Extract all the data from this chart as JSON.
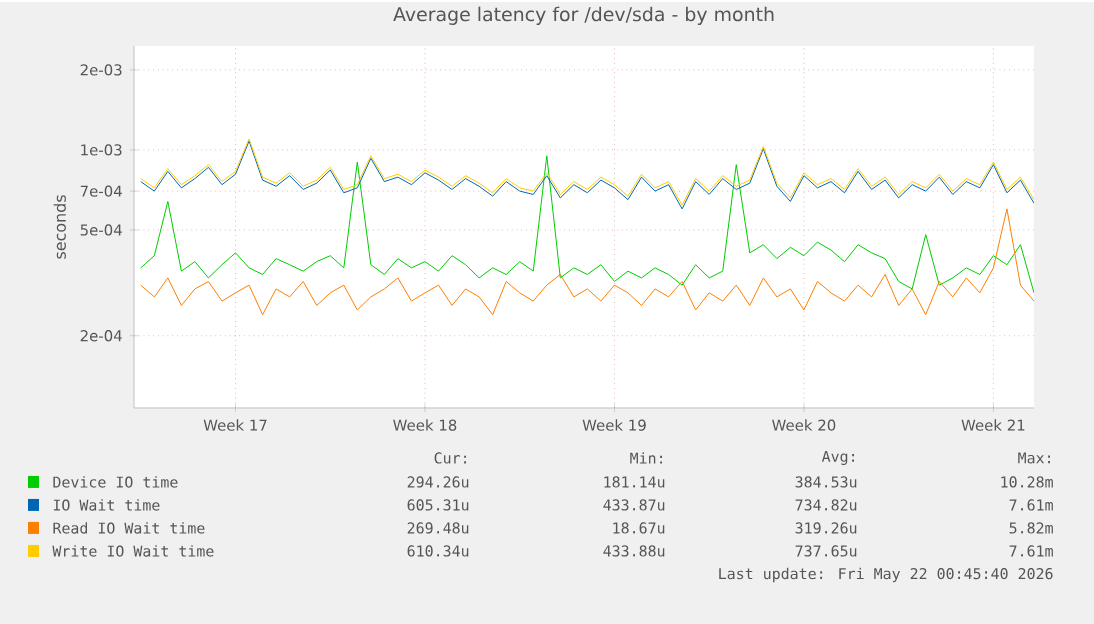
{
  "chart_data": {
    "type": "line",
    "title": "Average latency for /dev/sda - by month",
    "ylabel": "seconds",
    "log": "y",
    "grid": true,
    "legend": "bottom",
    "xlim": [
      "2026-04-19T06:00",
      "2026-05-22T12:00"
    ],
    "xticks": [
      {
        "value": "2026-04-23",
        "label": "Week 17"
      },
      {
        "value": "2026-04-30",
        "label": "Week 18"
      },
      {
        "value": "2026-05-07",
        "label": "Week 19"
      },
      {
        "value": "2026-05-14",
        "label": "Week 20"
      },
      {
        "value": "2026-05-21",
        "label": "Week 21"
      }
    ],
    "ylim": [
      0.000107,
      0.00246
    ],
    "yticks": [
      {
        "value": 0.0002,
        "label": "2e-04"
      },
      {
        "value": 0.0005,
        "label": "5e-04"
      },
      {
        "value": 0.0007,
        "label": "7e-04"
      },
      {
        "value": 0.001,
        "label": "1e-03"
      },
      {
        "value": 0.002,
        "label": "2e-03"
      }
    ],
    "x": [
      "2026-04-19T12:00",
      "2026-04-20T00:00",
      "2026-04-20T12:00",
      "2026-04-21T00:00",
      "2026-04-21T12:00",
      "2026-04-22T00:00",
      "2026-04-22T12:00",
      "2026-04-23T00:00",
      "2026-04-23T12:00",
      "2026-04-24T00:00",
      "2026-04-24T12:00",
      "2026-04-25T00:00",
      "2026-04-25T12:00",
      "2026-04-26T00:00",
      "2026-04-26T12:00",
      "2026-04-27T00:00",
      "2026-04-27T12:00",
      "2026-04-28T00:00",
      "2026-04-28T12:00",
      "2026-04-29T00:00",
      "2026-04-29T12:00",
      "2026-04-30T00:00",
      "2026-04-30T12:00",
      "2026-05-01T00:00",
      "2026-05-01T12:00",
      "2026-05-02T00:00",
      "2026-05-02T12:00",
      "2026-05-03T00:00",
      "2026-05-03T12:00",
      "2026-05-04T00:00",
      "2026-05-04T12:00",
      "2026-05-05T00:00",
      "2026-05-05T12:00",
      "2026-05-06T00:00",
      "2026-05-06T12:00",
      "2026-05-07T00:00",
      "2026-05-07T12:00",
      "2026-05-08T00:00",
      "2026-05-08T12:00",
      "2026-05-09T00:00",
      "2026-05-09T12:00",
      "2026-05-10T00:00",
      "2026-05-10T12:00",
      "2026-05-11T00:00",
      "2026-05-11T12:00",
      "2026-05-12T00:00",
      "2026-05-12T12:00",
      "2026-05-13T00:00",
      "2026-05-13T12:00",
      "2026-05-14T00:00",
      "2026-05-14T12:00",
      "2026-05-15T00:00",
      "2026-05-15T12:00",
      "2026-05-16T00:00",
      "2026-05-16T12:00",
      "2026-05-17T00:00",
      "2026-05-17T12:00",
      "2026-05-18T00:00",
      "2026-05-18T12:00",
      "2026-05-19T00:00",
      "2026-05-19T12:00",
      "2026-05-20T00:00",
      "2026-05-20T12:00",
      "2026-05-21T00:00",
      "2026-05-21T12:00",
      "2026-05-22T00:00",
      "2026-05-22T12:00"
    ],
    "series": [
      {
        "name": "Device IO time",
        "color": "#00cc00",
        "values": [
          0.00036,
          0.0004,
          0.00064,
          0.00035,
          0.00038,
          0.00033,
          0.00037,
          0.00041,
          0.00036,
          0.00034,
          0.00039,
          0.00037,
          0.00035,
          0.00038,
          0.0004,
          0.00036,
          0.0009,
          0.00037,
          0.00034,
          0.00039,
          0.00036,
          0.00038,
          0.00035,
          0.0004,
          0.00037,
          0.00033,
          0.00036,
          0.00034,
          0.00038,
          0.00035,
          0.00095,
          0.00033,
          0.00036,
          0.00034,
          0.00037,
          0.00032,
          0.00035,
          0.00033,
          0.00036,
          0.00034,
          0.00031,
          0.00037,
          0.00033,
          0.00035,
          0.00088,
          0.00041,
          0.00044,
          0.00039,
          0.00043,
          0.0004,
          0.00045,
          0.00042,
          0.00038,
          0.00044,
          0.00041,
          0.00039,
          0.00032,
          0.0003,
          0.00048,
          0.00031,
          0.00033,
          0.00036,
          0.00034,
          0.0004,
          0.00037,
          0.00044,
          0.00029
        ]
      },
      {
        "name": "IO Wait time",
        "color": "#0066b3",
        "values": [
          0.00076,
          0.0007,
          0.00083,
          0.00072,
          0.00078,
          0.00086,
          0.00074,
          0.00081,
          0.00108,
          0.00077,
          0.00073,
          0.0008,
          0.00071,
          0.00075,
          0.00084,
          0.00069,
          0.00072,
          0.00093,
          0.00076,
          0.00079,
          0.00074,
          0.00082,
          0.00077,
          0.00071,
          0.00078,
          0.00073,
          0.00067,
          0.00076,
          0.0007,
          0.00068,
          0.0008,
          0.00066,
          0.00074,
          0.00069,
          0.00077,
          0.00072,
          0.00065,
          0.00079,
          0.0007,
          0.00074,
          0.0006,
          0.00076,
          0.00068,
          0.00078,
          0.00071,
          0.00075,
          0.00101,
          0.00073,
          0.00064,
          0.0008,
          0.00072,
          0.00076,
          0.00069,
          0.00083,
          0.00071,
          0.00077,
          0.00066,
          0.00074,
          0.0007,
          0.00079,
          0.00068,
          0.00076,
          0.00072,
          0.00088,
          0.00069,
          0.00077,
          0.00063
        ]
      },
      {
        "name": "Read IO Wait time",
        "color": "#ff8000",
        "values": [
          0.00031,
          0.00028,
          0.00033,
          0.00026,
          0.0003,
          0.00032,
          0.00027,
          0.00029,
          0.00031,
          0.00024,
          0.0003,
          0.00028,
          0.00032,
          0.00026,
          0.00029,
          0.00031,
          0.00025,
          0.00028,
          0.0003,
          0.00033,
          0.00027,
          0.00029,
          0.00031,
          0.00026,
          0.0003,
          0.00028,
          0.00024,
          0.00032,
          0.00029,
          0.00027,
          0.00031,
          0.00034,
          0.00028,
          0.0003,
          0.00027,
          0.00031,
          0.00029,
          0.00026,
          0.0003,
          0.00028,
          0.00032,
          0.00025,
          0.00029,
          0.00027,
          0.00031,
          0.00026,
          0.00033,
          0.00028,
          0.0003,
          0.00025,
          0.00032,
          0.00029,
          0.00027,
          0.00031,
          0.00028,
          0.00034,
          0.00026,
          0.0003,
          0.00024,
          0.00032,
          0.00028,
          0.00033,
          0.00029,
          0.00036,
          0.0006,
          0.00031,
          0.00027
        ]
      },
      {
        "name": "Write IO Wait time",
        "color": "#ffcc00",
        "values": [
          0.00078,
          0.00072,
          0.00085,
          0.00074,
          0.0008,
          0.00088,
          0.00076,
          0.00083,
          0.0011,
          0.00079,
          0.00075,
          0.00082,
          0.00073,
          0.00077,
          0.00086,
          0.00071,
          0.00074,
          0.00095,
          0.00078,
          0.00081,
          0.00076,
          0.00084,
          0.00079,
          0.00073,
          0.0008,
          0.00075,
          0.00069,
          0.00078,
          0.00072,
          0.0007,
          0.00082,
          0.00068,
          0.00076,
          0.00071,
          0.00079,
          0.00074,
          0.00067,
          0.00081,
          0.00072,
          0.00076,
          0.00062,
          0.00078,
          0.0007,
          0.0008,
          0.00073,
          0.00077,
          0.00103,
          0.00075,
          0.00066,
          0.00082,
          0.00074,
          0.00078,
          0.00071,
          0.00085,
          0.00073,
          0.00079,
          0.00068,
          0.00076,
          0.00072,
          0.00081,
          0.0007,
          0.00078,
          0.00074,
          0.0009,
          0.00071,
          0.00079,
          0.00065
        ]
      }
    ],
    "annotations": [
      "Cur:",
      "Min:",
      "Avg:",
      "Max:",
      "294.26u",
      "181.14u",
      "384.53u",
      "10.28m",
      "605.31u",
      "433.87u",
      "734.82u",
      "7.61m",
      "269.48u",
      "18.67u",
      "319.26u",
      "5.82m",
      "610.34u",
      "433.88u",
      "737.65u",
      "7.61m",
      "Last update: Fri May 22 00:45:40 2026"
    ]
  }
}
